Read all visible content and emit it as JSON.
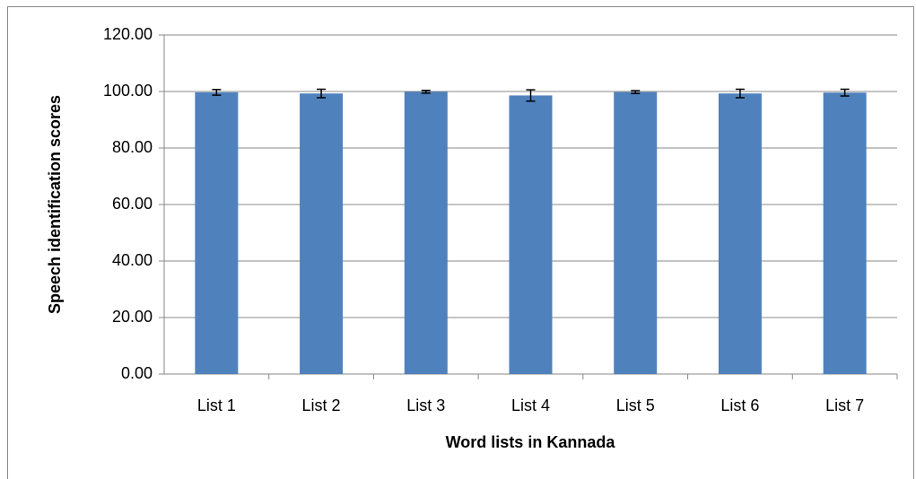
{
  "chart_data": {
    "type": "bar",
    "x_label": "Word lists in Kannada",
    "y_label": "Speech identification scores",
    "categories": [
      "List 1",
      "List 2",
      "List 3",
      "List 4",
      "List 5",
      "List 6",
      "List 7"
    ],
    "values": [
      99.7,
      99.3,
      99.9,
      98.6,
      99.8,
      99.3,
      99.6
    ],
    "errors": [
      1.0,
      1.5,
      0.5,
      2.0,
      0.5,
      1.5,
      1.2
    ],
    "color": "#4f81bd",
    "ylim": [
      0,
      120
    ],
    "yticks": [
      {
        "value": 0,
        "label": "0.00"
      },
      {
        "value": 20,
        "label": "20.00"
      },
      {
        "value": 40,
        "label": "40.00"
      },
      {
        "value": 60,
        "label": "60.00"
      },
      {
        "value": 80,
        "label": "80.00"
      },
      {
        "value": 100,
        "label": "100.00"
      },
      {
        "value": 120,
        "label": "120.00"
      }
    ],
    "grid": true
  }
}
